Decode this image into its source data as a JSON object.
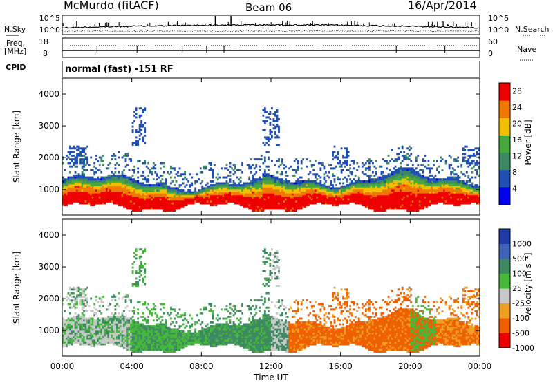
{
  "header": {
    "title": "McMurdo (fitACF)",
    "beam": "Beam 06",
    "date": "16/Apr/2014"
  },
  "mode_text": "normal (fast) -151 RF",
  "left_labels": {
    "nsky": "N.Sky",
    "freq": "Freq.",
    "freq_unit": "[MHz]",
    "cpid": "CPID"
  },
  "right_labels": {
    "nsearch": "N.Search",
    "nave": "Nave"
  },
  "colors": {
    "power": [
      "#0000ee",
      "#1f4fb3",
      "#3d8a62",
      "#46a83a",
      "#f0c000",
      "#f07800",
      "#ee0000"
    ],
    "velocity": [
      "#ee0000",
      "#f06000",
      "#f0a020",
      "#c8c8c8",
      "#46b83a",
      "#3d8a62",
      "#3f63b8",
      "#1f3ca8"
    ]
  },
  "chart_data": [
    {
      "type": "line",
      "title": "N.Sky / N.Search",
      "x": [
        "00:00",
        "04:00",
        "08:00",
        "12:00",
        "16:00",
        "20:00",
        "00:00"
      ],
      "yticks": [
        "10^5",
        "10^0"
      ],
      "yticks_right": [
        "10^5",
        "10^0"
      ]
    },
    {
      "type": "line",
      "title": "Freq. / Nave",
      "yticks": [
        "18",
        "8"
      ],
      "yticks_right": [
        "60",
        "0"
      ],
      "freq_mhz": 12,
      "nave": 15
    },
    {
      "type": "heatmap",
      "title": "Power",
      "xlabel": "",
      "ylabel": "Slant Range [km]",
      "x_range_hours": [
        0,
        24
      ],
      "ylim": [
        200,
        4500
      ],
      "yticks": [
        1000,
        2000,
        3000,
        4000
      ],
      "colorbar": {
        "label": "Power [dB]",
        "ticks": [
          4,
          8,
          12,
          16,
          20,
          24,
          28
        ],
        "range": [
          0,
          30
        ]
      }
    },
    {
      "type": "heatmap",
      "title": "Velocity",
      "xlabel": "Time UT",
      "ylabel": "Slant Range [km]",
      "x_range_hours": [
        0,
        24
      ],
      "xticks": [
        "00:00",
        "04:00",
        "08:00",
        "12:00",
        "16:00",
        "20:00",
        "00:00"
      ],
      "ylim": [
        200,
        4500
      ],
      "yticks": [
        1000,
        2000,
        3000,
        4000
      ],
      "colorbar": {
        "label": "Velocity [m s⁻¹]",
        "ticks": [
          "1000",
          "500",
          "100",
          "25",
          "-25",
          "-100",
          "-500",
          "-1000"
        ]
      }
    }
  ]
}
